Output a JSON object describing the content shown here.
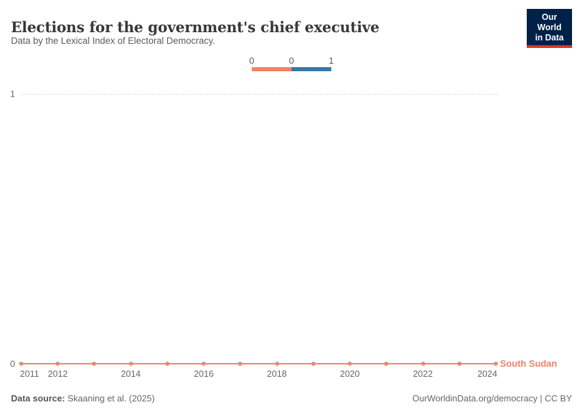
{
  "header": {
    "title": "Elections for the government's chief executive",
    "subtitle": "Data by the Lexical Index of Electoral Democracy.",
    "logo": {
      "line1": "Our World",
      "line2": "in Data",
      "bg_color": "#002147",
      "accent_color": "#dc3424"
    }
  },
  "legend": {
    "tick_labels": [
      "0",
      "0",
      "1"
    ],
    "segments": [
      {
        "from": "0",
        "to": "0",
        "color": "#ee8465"
      },
      {
        "from": "0",
        "to": "1",
        "color": "#3778a7"
      }
    ]
  },
  "chart_data": {
    "type": "line",
    "title": "Elections for the government's chief executive",
    "subtitle": "Data by the Lexical Index of Electoral Democracy.",
    "xlim": [
      2011,
      2024
    ],
    "ylim": [
      0,
      1
    ],
    "x_ticks": [
      2011,
      2012,
      2014,
      2016,
      2018,
      2020,
      2022,
      2024
    ],
    "y_ticks": [
      "1",
      "0"
    ],
    "grid": "horizontal dashed gridline at y=1 only",
    "legend_position": "top-center",
    "series": [
      {
        "name": "South Sudan",
        "color": "#ee8465",
        "x": [
          2011,
          2012,
          2013,
          2014,
          2015,
          2016,
          2017,
          2018,
          2019,
          2020,
          2021,
          2022,
          2023,
          2024
        ],
        "values": [
          0,
          0,
          0,
          0,
          0,
          0,
          0,
          0,
          0,
          0,
          0,
          0,
          0,
          0
        ]
      }
    ]
  },
  "footer": {
    "source_label": "Data source:",
    "source_value": "Skaaning et al. (2025)",
    "attribution": "OurWorldinData.org/democracy | CC BY"
  }
}
